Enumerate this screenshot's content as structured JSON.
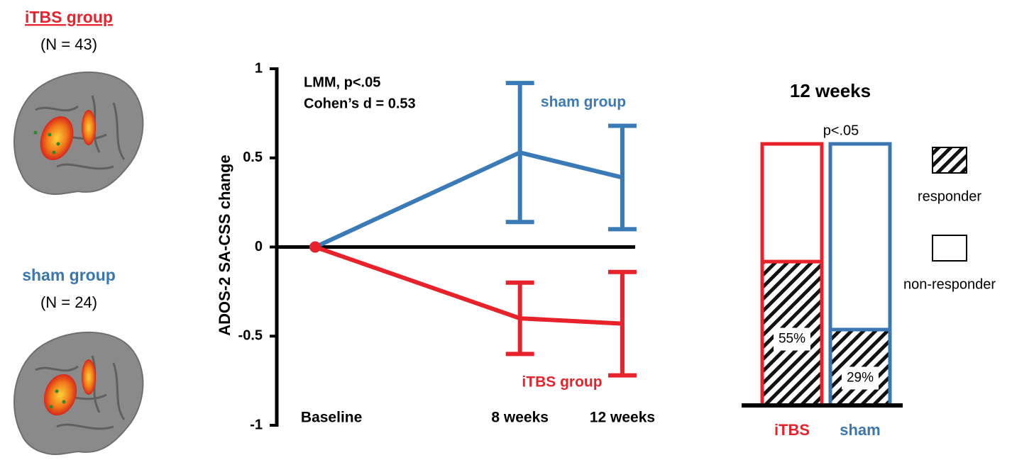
{
  "panels": [
    {
      "title": "iTBS group",
      "subtitle": "(N = 43)",
      "color": "#e8222a"
    },
    {
      "title": "sham group",
      "subtitle": "(N = 24)",
      "color": "#3a76b0"
    }
  ],
  "chart_data": [
    {
      "type": "line",
      "y_label": "ADOS-2 SA-CSS change",
      "annotations": [
        "LMM, p<.05",
        "Cohen’s d = 0.53"
      ],
      "x": [
        0,
        8,
        12
      ],
      "xlim": [
        -1.5,
        12.5
      ],
      "xticks": [
        {
          "value": 0,
          "label": "Baseline"
        },
        {
          "value": 8,
          "label": "8 weeks"
        },
        {
          "value": 12,
          "label": "12 weeks"
        }
      ],
      "ylim": [
        -1,
        1
      ],
      "yticks": [
        -1,
        -0.5,
        0,
        0.5,
        1
      ],
      "series": [
        {
          "name": "sham group",
          "color": "#3a7ab6",
          "values": [
            0,
            0.53,
            0.39
          ],
          "errors": [
            null,
            0.39,
            0.29
          ]
        },
        {
          "name": "iTBS group",
          "color": "#e8222a",
          "values": [
            0,
            -0.4,
            -0.43
          ],
          "errors": [
            null,
            0.2,
            0.29
          ]
        }
      ]
    },
    {
      "type": "stacked-bar",
      "title": "12 weeks",
      "annotation": "p<.05",
      "categories": [
        "iTBS",
        "sham"
      ],
      "category_colors": [
        "#e8222a",
        "#3a76b0"
      ],
      "ylim": [
        0,
        100
      ],
      "series": [
        {
          "name": "responder",
          "pattern": "hatch",
          "values": [
            55,
            29
          ],
          "value_labels": [
            "55%",
            "29%"
          ]
        },
        {
          "name": "non-responder",
          "pattern": "none",
          "values": [
            45,
            71
          ]
        }
      ]
    }
  ]
}
